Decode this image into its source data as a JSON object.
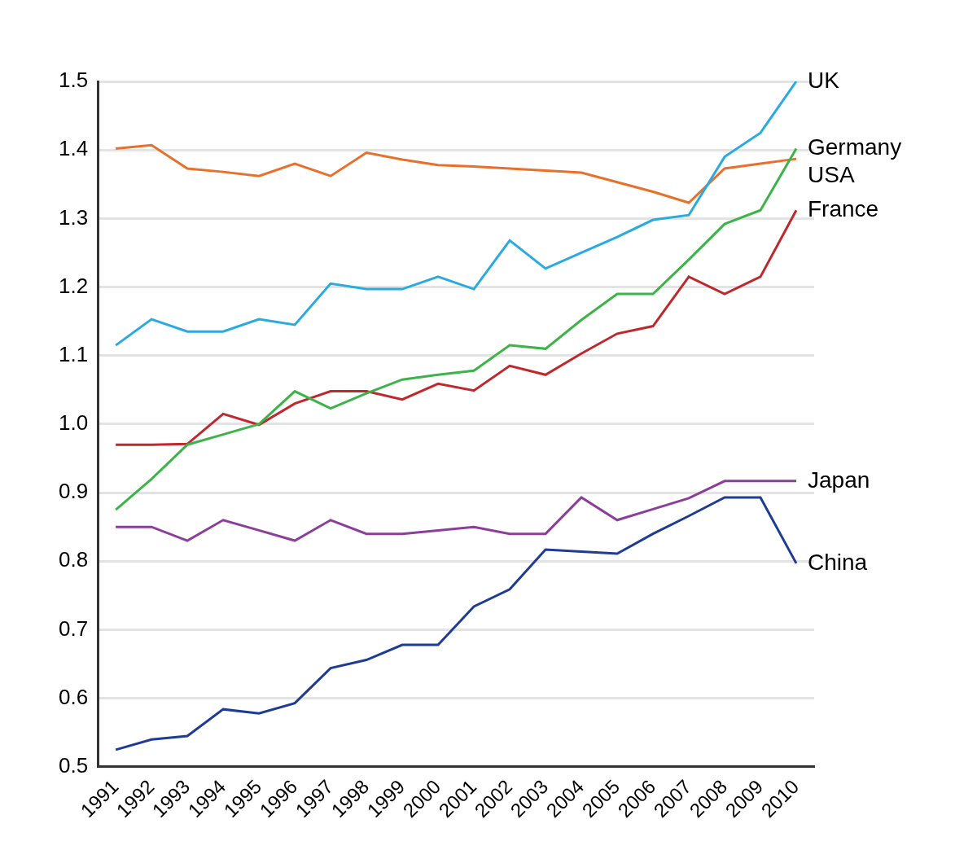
{
  "chart_data": {
    "type": "line",
    "categories": [
      "1991",
      "1992",
      "1993",
      "1994",
      "1995",
      "1996",
      "1997",
      "1998",
      "1999",
      "2000",
      "2001",
      "2002",
      "2003",
      "2004",
      "2005",
      "2006",
      "2007",
      "2008",
      "2009",
      "2010"
    ],
    "series": [
      {
        "name": "UK",
        "color": "#29aae1",
        "values": [
          1.115,
          1.153,
          1.135,
          1.135,
          1.153,
          1.145,
          1.205,
          1.197,
          1.197,
          1.215,
          1.197,
          1.268,
          1.227,
          1.25,
          1.273,
          1.298,
          1.305,
          1.39,
          1.425,
          1.5
        ]
      },
      {
        "name": "Germany",
        "color": "#3db34a",
        "values": [
          0.875,
          0.92,
          0.97,
          0.985,
          1.0,
          1.048,
          1.023,
          1.045,
          1.065,
          1.072,
          1.078,
          1.115,
          1.11,
          1.152,
          1.19,
          1.19,
          1.24,
          1.292,
          1.312,
          1.402
        ]
      },
      {
        "name": "USA",
        "color": "#e8702a",
        "values": [
          1.402,
          1.407,
          1.373,
          1.368,
          1.362,
          1.38,
          1.362,
          1.396,
          1.386,
          1.378,
          1.376,
          1.373,
          1.37,
          1.367,
          1.353,
          1.339,
          1.323,
          1.373,
          1.38,
          1.387
        ]
      },
      {
        "name": "France",
        "color": "#c0282d",
        "values": [
          0.97,
          0.97,
          0.971,
          1.015,
          0.999,
          1.03,
          1.048,
          1.048,
          1.036,
          1.059,
          1.049,
          1.085,
          1.072,
          1.103,
          1.132,
          1.143,
          1.215,
          1.19,
          1.215,
          1.312
        ]
      },
      {
        "name": "Japan",
        "color": "#8b3f9b",
        "values": [
          0.85,
          0.85,
          0.83,
          0.86,
          0.845,
          0.83,
          0.86,
          0.84,
          0.84,
          0.845,
          0.85,
          0.84,
          0.84,
          0.893,
          0.86,
          0.876,
          0.892,
          0.917,
          0.917,
          0.917
        ]
      },
      {
        "name": "China",
        "color": "#1f3c94",
        "values": [
          0.525,
          0.54,
          0.545,
          0.584,
          0.578,
          0.593,
          0.644,
          0.656,
          0.678,
          0.678,
          0.734,
          0.759,
          0.817,
          0.814,
          0.811,
          0.84,
          0.866,
          0.893,
          0.893,
          0.797
        ]
      }
    ],
    "ylim": [
      0.5,
      1.5
    ],
    "yticks": [
      0.5,
      0.6,
      0.7,
      0.8,
      0.9,
      {
        "value": 1,
        "label": "1.0"
      },
      1.1,
      1.2,
      1.3,
      1.4,
      1.5
    ],
    "grid": true
  }
}
